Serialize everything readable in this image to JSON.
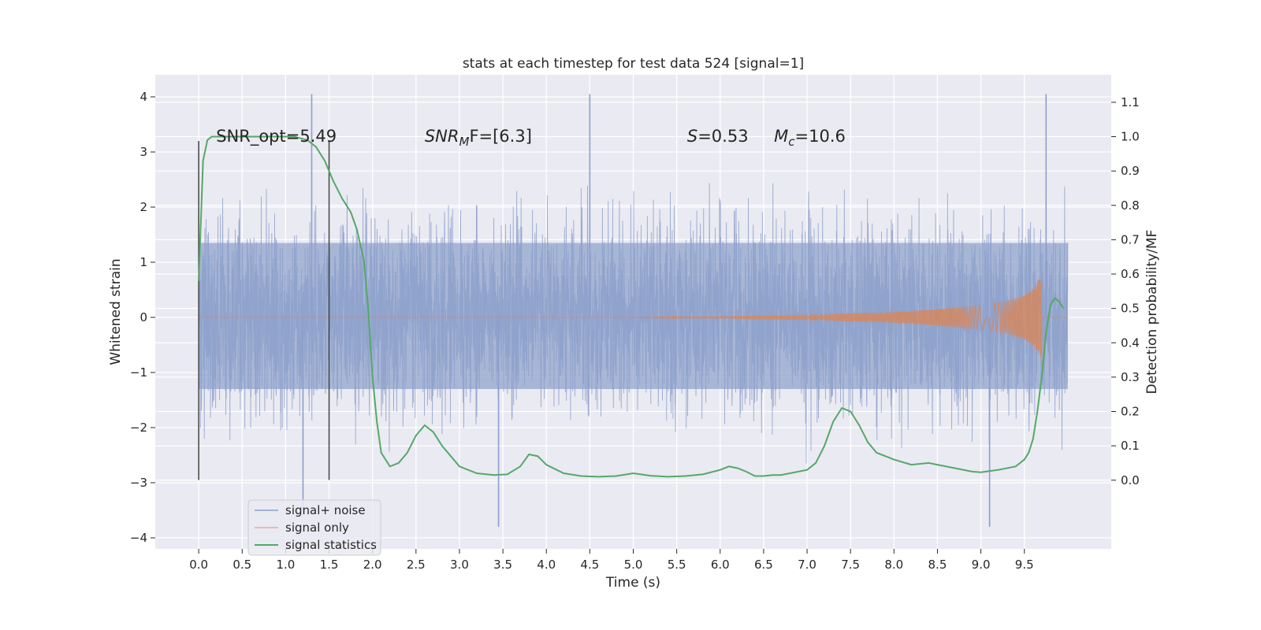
{
  "chart_data": {
    "type": "line",
    "title": "stats at each timestep for test data 524 [signal=1]",
    "xlabel": "Time (s)",
    "ylabel": "Whitened strain",
    "ylabel_right": "Detection probability/MF",
    "xlim": [
      -0.5,
      10.5
    ],
    "ylim": [
      -4.2,
      4.4
    ],
    "ylim_right": [
      -0.2,
      1.18
    ],
    "x_ticks": [
      "0.0",
      "0.5",
      "1.0",
      "1.5",
      "2.0",
      "2.5",
      "3.0",
      "3.5",
      "4.0",
      "4.5",
      "5.0",
      "5.5",
      "6.0",
      "6.5",
      "7.0",
      "7.5",
      "8.0",
      "8.5",
      "9.0",
      "9.5"
    ],
    "y_ticks": [
      "4",
      "3",
      "2",
      "1",
      "0",
      "−1",
      "−2",
      "−3",
      "−4"
    ],
    "y_ticks_right": [
      "1.1",
      "1.0",
      "0.9",
      "0.8",
      "0.7",
      "0.6",
      "0.5",
      "0.4",
      "0.3",
      "0.2",
      "0.1",
      "0.0"
    ],
    "grid": true,
    "legend_placement": "lower-left",
    "colors": {
      "noise": "#8c9fcb",
      "signal": "#dd8452",
      "stats": "#55a868",
      "background": "#eaeaf2"
    },
    "annotations": {
      "snr_opt": "SNR_opt=5.49",
      "snr_mf_pre": "SNR",
      "snr_mf_sub": "M",
      "snr_mf_post": "F=[6.3]",
      "s_label": "S",
      "s_value": "=0.53",
      "mc_label": "M",
      "mc_sub": "c",
      "mc_value": "=10.6"
    },
    "vertical_markers": [
      0.0,
      1.5
    ],
    "series": [
      {
        "name": "signal+ noise",
        "axis": "left",
        "x_range": [
          0.0,
          10.0
        ],
        "typical_band": [
          -1.3,
          1.35
        ],
        "notable_peaks": [
          [
            1.3,
            4.05
          ],
          [
            4.5,
            4.05
          ],
          [
            9.75,
            4.05
          ],
          [
            3.45,
            -3.8
          ],
          [
            9.1,
            -3.8
          ],
          [
            1.2,
            -3.5
          ]
        ]
      },
      {
        "name": "signal only",
        "axis": "left",
        "description_points": [
          [
            0.0,
            0.0
          ],
          [
            5.0,
            0.0
          ],
          [
            6.0,
            0.02
          ],
          [
            7.0,
            0.05
          ],
          [
            8.0,
            0.1
          ],
          [
            8.5,
            0.15
          ],
          [
            9.0,
            0.22
          ],
          [
            9.3,
            0.3
          ],
          [
            9.5,
            0.4
          ],
          [
            9.62,
            0.55
          ],
          [
            9.68,
            0.72
          ],
          [
            9.7,
            0.0
          ]
        ]
      },
      {
        "name": "signal statistics",
        "axis": "right",
        "x": [
          0.0,
          0.05,
          0.1,
          0.15,
          0.2,
          0.3,
          0.5,
          0.8,
          1.1,
          1.25,
          1.35,
          1.45,
          1.55,
          1.65,
          1.75,
          1.82,
          1.9,
          1.95,
          2.0,
          2.05,
          2.1,
          2.2,
          2.3,
          2.4,
          2.5,
          2.6,
          2.7,
          2.8,
          3.0,
          3.2,
          3.4,
          3.55,
          3.7,
          3.8,
          3.9,
          4.0,
          4.2,
          4.4,
          4.6,
          4.8,
          5.0,
          5.2,
          5.4,
          5.6,
          5.8,
          6.0,
          6.1,
          6.2,
          6.3,
          6.4,
          6.5,
          6.6,
          6.7,
          6.8,
          6.9,
          7.0,
          7.1,
          7.2,
          7.3,
          7.4,
          7.5,
          7.6,
          7.7,
          7.8,
          8.0,
          8.2,
          8.4,
          8.5,
          8.7,
          8.9,
          9.0,
          9.2,
          9.4,
          9.5,
          9.55,
          9.6,
          9.65,
          9.7,
          9.75,
          9.8,
          9.85,
          9.9,
          9.95
        ],
        "y": [
          0.58,
          0.93,
          0.99,
          1.0,
          1.0,
          1.0,
          1.0,
          1.0,
          1.0,
          0.99,
          0.97,
          0.93,
          0.87,
          0.82,
          0.78,
          0.73,
          0.64,
          0.5,
          0.3,
          0.17,
          0.08,
          0.04,
          0.05,
          0.08,
          0.13,
          0.16,
          0.14,
          0.1,
          0.04,
          0.02,
          0.015,
          0.017,
          0.04,
          0.075,
          0.07,
          0.045,
          0.02,
          0.012,
          0.01,
          0.012,
          0.02,
          0.013,
          0.01,
          0.012,
          0.017,
          0.03,
          0.04,
          0.035,
          0.025,
          0.012,
          0.012,
          0.015,
          0.015,
          0.02,
          0.025,
          0.03,
          0.05,
          0.1,
          0.17,
          0.21,
          0.2,
          0.16,
          0.11,
          0.08,
          0.06,
          0.045,
          0.05,
          0.045,
          0.035,
          0.025,
          0.023,
          0.03,
          0.04,
          0.06,
          0.08,
          0.12,
          0.2,
          0.3,
          0.43,
          0.51,
          0.53,
          0.52,
          0.5
        ]
      }
    ]
  }
}
